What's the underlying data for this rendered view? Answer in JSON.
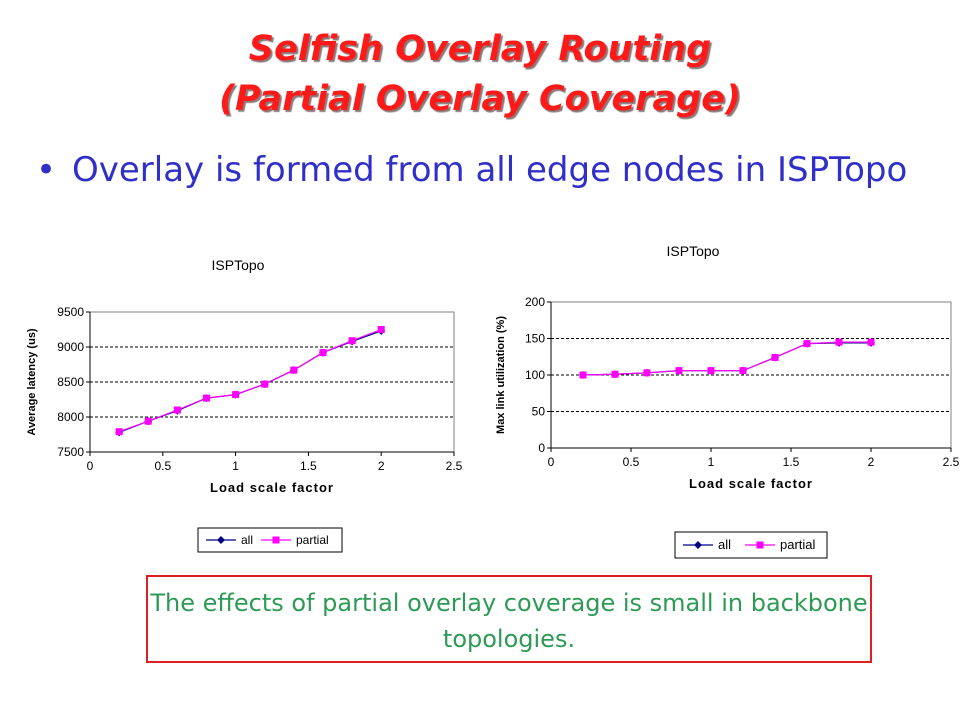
{
  "slide": {
    "title_line1": "Selfish Overlay Routing",
    "title_line2": "(Partial Overlay Coverage)",
    "bullet_marker": "•",
    "bullet_text": "Overlay is formed from all edge nodes in ISPTopo",
    "callout_text": "The effects of partial overlay coverage is small in backbone topologies."
  },
  "colors": {
    "title": "#ff1a1a",
    "bullet": "#3030c8",
    "callout_text": "#2e9a55",
    "callout_border": "#e02020",
    "series_all": "#000080",
    "series_partial": "#ff00ff"
  },
  "chart_data": [
    {
      "type": "line",
      "title": "ISPTopo",
      "xlabel": "Load scale factor",
      "ylabel": "Average latency (us)",
      "xlim": [
        0,
        2.5
      ],
      "ylim": [
        7500,
        9500
      ],
      "xticks": [
        0,
        0.5,
        1,
        1.5,
        2,
        2.5
      ],
      "xtick_labels": [
        "0",
        "0.5",
        "1",
        "1.5",
        "2",
        "2.5"
      ],
      "yticks": [
        7500,
        8000,
        8500,
        9000,
        9500
      ],
      "ytick_labels": [
        "7500",
        "8000",
        "8500",
        "9000",
        "9500"
      ],
      "grid": "horizontal dashed",
      "legend_position": "bottom",
      "x": [
        0.2,
        0.4,
        0.6,
        0.8,
        1.0,
        1.2,
        1.4,
        1.6,
        1.8,
        2.0
      ],
      "series": [
        {
          "name": "all",
          "marker": "diamond",
          "values": [
            7780,
            7940,
            8090,
            8270,
            8320,
            8470,
            8670,
            8920,
            9080,
            9230
          ]
        },
        {
          "name": "partial",
          "marker": "square",
          "values": [
            7790,
            7940,
            8100,
            8270,
            8320,
            8470,
            8670,
            8920,
            9090,
            9250
          ]
        }
      ]
    },
    {
      "type": "line",
      "title": "ISPTopo",
      "xlabel": "Load scale factor",
      "ylabel": "Max link utilization (%)",
      "xlim": [
        0,
        2.5
      ],
      "ylim": [
        0,
        200
      ],
      "xticks": [
        0,
        0.5,
        1,
        1.5,
        2,
        2.5
      ],
      "xtick_labels": [
        "0",
        "0.5",
        "1",
        "1.5",
        "2",
        "2.5"
      ],
      "yticks": [
        0,
        50,
        100,
        150,
        200
      ],
      "ytick_labels": [
        "0",
        "50",
        "100",
        "150",
        "200"
      ],
      "grid": "horizontal dashed",
      "legend_position": "bottom",
      "x": [
        0.2,
        0.4,
        0.6,
        0.8,
        1.0,
        1.2,
        1.4,
        1.6,
        1.8,
        2.0
      ],
      "series": [
        {
          "name": "all",
          "marker": "diamond",
          "values": [
            100,
            101,
            103,
            106,
            106,
            106,
            124,
            143,
            144,
            144
          ]
        },
        {
          "name": "partial",
          "marker": "square",
          "values": [
            100,
            101,
            103,
            106,
            106,
            106,
            124,
            143,
            145,
            145
          ]
        }
      ]
    }
  ]
}
